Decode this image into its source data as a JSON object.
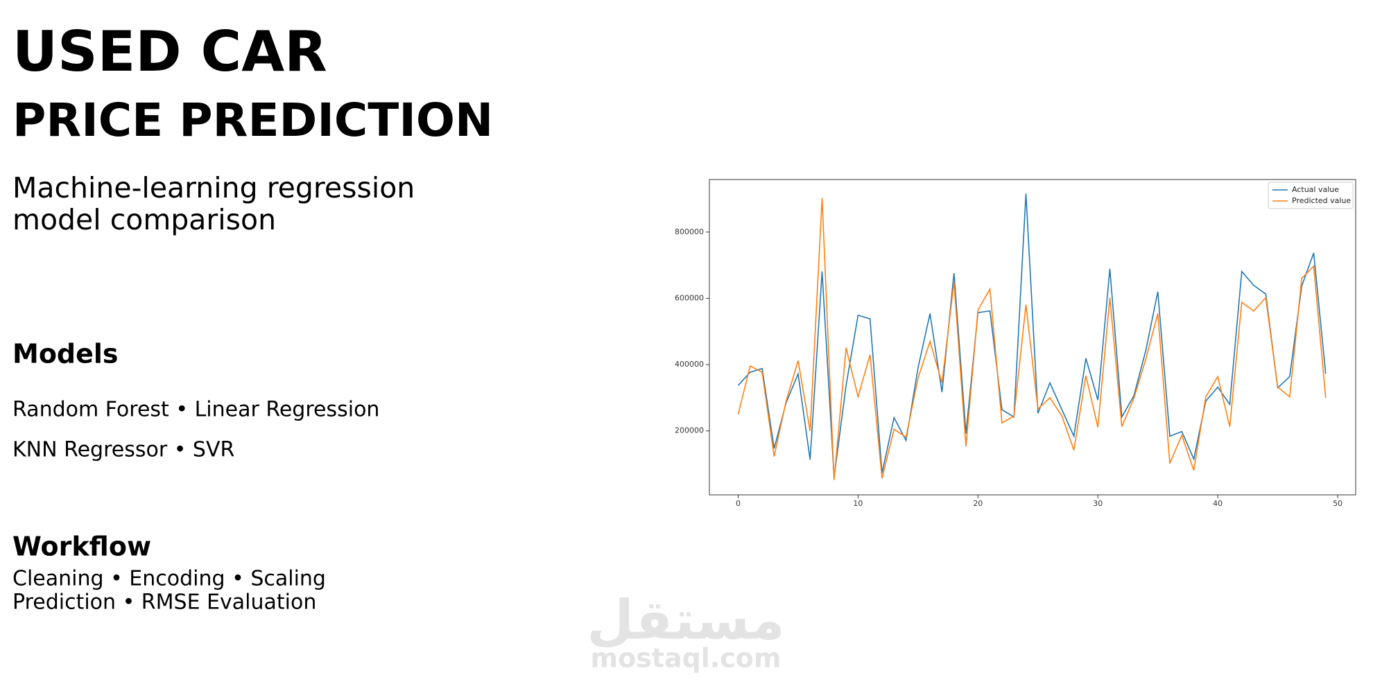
{
  "header": {
    "title_lines": [
      "USED CAR",
      "PRICE PREDICTION"
    ],
    "subtitle_lines": [
      "Machine-learning regression",
      "model comparison"
    ]
  },
  "models": {
    "heading": "Models",
    "lines": [
      "Random Forest • Linear Regression",
      "KNN Regressor • SVR"
    ]
  },
  "workflow": {
    "heading": "Workflow",
    "lines": [
      "Cleaning • Encoding • Scaling",
      "Prediction • RMSE Evaluation"
    ]
  },
  "watermark": {
    "arabic": "مستقل",
    "latin": "mostaql.com"
  },
  "chart_data": {
    "type": "line",
    "x": [
      0,
      1,
      2,
      3,
      4,
      5,
      6,
      7,
      8,
      9,
      10,
      11,
      12,
      13,
      14,
      15,
      16,
      17,
      18,
      19,
      20,
      21,
      22,
      23,
      24,
      25,
      26,
      27,
      28,
      29,
      30,
      31,
      32,
      33,
      34,
      35,
      36,
      37,
      38,
      39,
      40,
      41,
      42,
      43,
      44,
      45,
      46,
      47,
      48,
      49
    ],
    "series": [
      {
        "name": "Actual value",
        "color": "#1f77b4",
        "values": [
          337000,
          377000,
          388000,
          147000,
          285000,
          372000,
          113000,
          681000,
          60000,
          337000,
          549000,
          538000,
          73000,
          240000,
          171000,
          390000,
          554000,
          317000,
          676000,
          192000,
          557000,
          562000,
          264000,
          242000,
          916000,
          253000,
          345000,
          264000,
          184000,
          419000,
          293000,
          689000,
          242000,
          306000,
          443000,
          620000,
          184000,
          198000,
          115000,
          290000,
          332000,
          280000,
          681000,
          639000,
          613000,
          330000,
          364000,
          637000,
          737000,
          372000
        ]
      },
      {
        "name": "Predicted value",
        "color": "#ff7f0e",
        "values": [
          250000,
          396000,
          377000,
          123000,
          290000,
          412000,
          200000,
          903000,
          52000,
          451000,
          303000,
          430000,
          57000,
          205000,
          181000,
          359000,
          470000,
          345000,
          649000,
          153000,
          565000,
          628000,
          224000,
          245000,
          581000,
          266000,
          300000,
          245000,
          142000,
          367000,
          211000,
          602000,
          213000,
          298000,
          417000,
          554000,
          102000,
          187000,
          81000,
          303000,
          364000,
          213000,
          588000,
          562000,
          602000,
          332000,
          303000,
          660000,
          697000,
          300000
        ]
      }
    ],
    "xlim": [
      -2.4,
      51.5
    ],
    "xticks": [
      0,
      10,
      20,
      30,
      40,
      50
    ],
    "ylim": [
      7000,
      958600
    ],
    "yticks": [
      200000,
      400000,
      600000,
      800000
    ],
    "legend": "upper right"
  }
}
